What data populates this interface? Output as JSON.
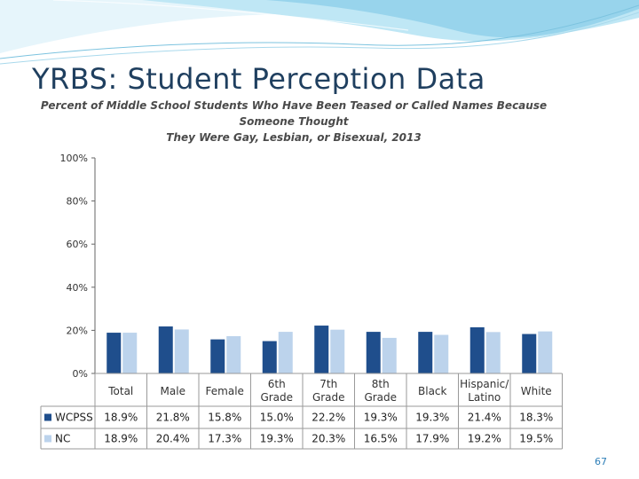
{
  "slide": {
    "title": "YRBS:  Student Perception Data",
    "slide_number": "67"
  },
  "colors": {
    "wcpss": "#1f4e8c",
    "nc": "#bcd3ec",
    "title": "#1f3f5f",
    "banner_light": "#cfe9f5",
    "banner_mid": "#8fd0ea"
  },
  "chart_data": {
    "type": "bar",
    "title_line1": "Percent of Middle School Students Who Have Been Teased or Called Names Because Someone Thought",
    "title_line2": "They Were Gay, Lesbian, or Bisexual, 2013",
    "categories": [
      "Total",
      "Male",
      "Female",
      "6th Grade",
      "7th Grade",
      "8th Grade",
      "Black",
      "Hispanic/ Latino",
      "White"
    ],
    "category_lines": [
      [
        "Total"
      ],
      [
        "Male"
      ],
      [
        "Female"
      ],
      [
        "6th",
        "Grade"
      ],
      [
        "7th",
        "Grade"
      ],
      [
        "8th",
        "Grade"
      ],
      [
        "Black"
      ],
      [
        "Hispanic/",
        "Latino"
      ],
      [
        "White"
      ]
    ],
    "series": [
      {
        "name": "WCPSS",
        "values": [
          18.9,
          21.8,
          15.8,
          15.0,
          22.2,
          19.3,
          19.3,
          21.4,
          18.3
        ],
        "labels": [
          "18.9%",
          "21.8%",
          "15.8%",
          "15.0%",
          "22.2%",
          "19.3%",
          "19.3%",
          "21.4%",
          "18.3%"
        ]
      },
      {
        "name": "NC",
        "values": [
          18.9,
          20.4,
          17.3,
          19.3,
          20.3,
          16.5,
          17.9,
          19.2,
          19.5
        ],
        "labels": [
          "18.9%",
          "20.4%",
          "17.3%",
          "19.3%",
          "20.3%",
          "16.5%",
          "17.9%",
          "19.2%",
          "19.5%"
        ]
      }
    ],
    "ylim": [
      0,
      100
    ],
    "yticks": [
      0,
      20,
      40,
      60,
      80,
      100
    ],
    "ytick_labels": [
      "0%",
      "20%",
      "40%",
      "60%",
      "80%",
      "100%"
    ],
    "grid": false,
    "legend": "data-table"
  }
}
